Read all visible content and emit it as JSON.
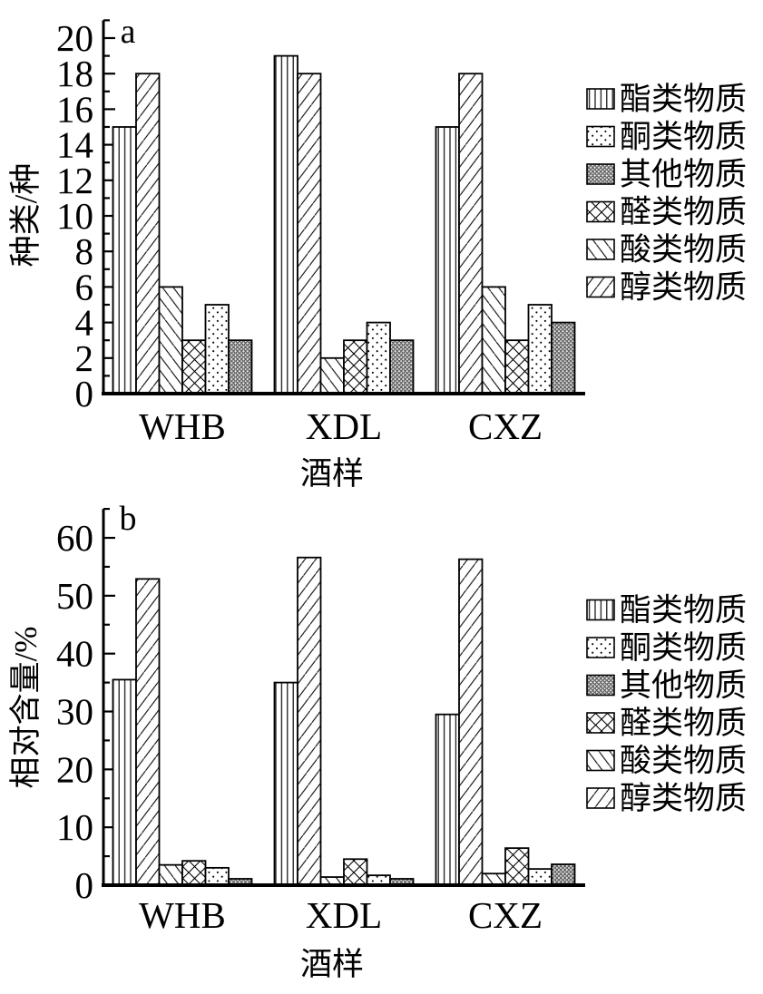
{
  "colors": {
    "ink": "#000000",
    "background": "#ffffff",
    "gray_pattern_stroke": "#333333",
    "gray_pattern_bg": "#e9e9e9"
  },
  "chart_data": [
    {
      "id": "a",
      "type": "bar",
      "panel_label": "a",
      "xlabel": "酒样",
      "ylabel": "种类/种",
      "categories": [
        "WHB",
        "XDL",
        "CXZ"
      ],
      "ylim": [
        0,
        20
      ],
      "ytick_step": 2,
      "yminor_step": 1,
      "yticks": [
        "0",
        "2",
        "4",
        "6",
        "8",
        "10",
        "12",
        "14",
        "16",
        "18",
        "20"
      ],
      "grid": "off",
      "legend_position": "right",
      "legend_order": [
        0,
        4,
        5,
        3,
        2,
        1
      ],
      "series": [
        {
          "name": "酯类物质",
          "pattern": "vlines",
          "values": [
            15,
            19,
            15
          ]
        },
        {
          "name": "醇类物质",
          "pattern": "fslash",
          "values": [
            18,
            18,
            18
          ]
        },
        {
          "name": "酸类物质",
          "pattern": "bslash",
          "values": [
            6,
            2,
            6
          ]
        },
        {
          "name": "醛类物质",
          "pattern": "cross",
          "values": [
            3,
            3,
            3
          ]
        },
        {
          "name": "酮类物质",
          "pattern": "dots",
          "values": [
            5,
            4,
            5
          ]
        },
        {
          "name": "其他物质",
          "pattern": "graydots",
          "values": [
            3,
            3,
            4
          ]
        }
      ]
    },
    {
      "id": "b",
      "type": "bar",
      "panel_label": "b",
      "xlabel": "酒样",
      "ylabel": "相对含量/%",
      "categories": [
        "WHB",
        "XDL",
        "CXZ"
      ],
      "ylim": [
        0,
        60
      ],
      "ytick_step": 10,
      "yminor_step": 5,
      "yticks": [
        "0",
        "10",
        "20",
        "30",
        "40",
        "50",
        "60"
      ],
      "grid": "off",
      "legend_position": "right",
      "legend_order": [
        0,
        4,
        5,
        3,
        2,
        1
      ],
      "series": [
        {
          "name": "酯类物质",
          "pattern": "vlines",
          "values": [
            35.5,
            35.0,
            29.5
          ]
        },
        {
          "name": "醇类物质",
          "pattern": "fslash",
          "values": [
            52.9,
            56.6,
            56.3
          ]
        },
        {
          "name": "酸类物质",
          "pattern": "bslash",
          "values": [
            3.5,
            1.4,
            2.0
          ]
        },
        {
          "name": "醛类物质",
          "pattern": "cross",
          "values": [
            4.2,
            4.5,
            6.4
          ]
        },
        {
          "name": "酮类物质",
          "pattern": "dots",
          "values": [
            3.0,
            1.7,
            2.8
          ]
        },
        {
          "name": "其他物质",
          "pattern": "graydots",
          "values": [
            1.1,
            1.1,
            3.6
          ]
        }
      ]
    }
  ]
}
